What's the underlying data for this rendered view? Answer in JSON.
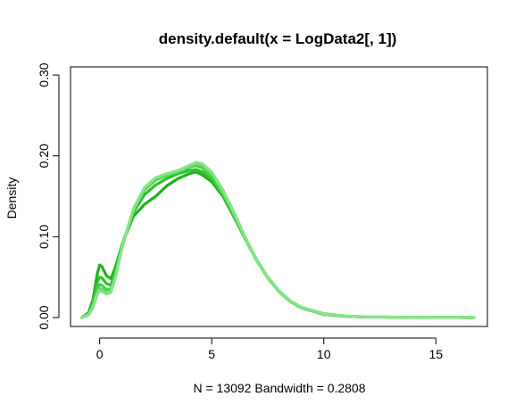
{
  "chart_data": {
    "type": "line",
    "title": "density.default(x = LogData2[, 1])",
    "xlabel": "N = 13092   Bandwidth = 0.2808",
    "ylabel": "Density",
    "xlim": [
      -1.3,
      17.3
    ],
    "ylim": [
      -0.011,
      0.31
    ],
    "x_ticks": [
      0,
      5,
      10,
      15
    ],
    "y_ticks": [
      0.0,
      0.1,
      0.2,
      0.3
    ],
    "x_tick_labels": [
      "0",
      "5",
      "10",
      "15"
    ],
    "y_tick_labels": [
      "0.00",
      "0.10",
      "0.20",
      "0.30"
    ],
    "grid": false,
    "legend": "none",
    "series": [
      {
        "color": "#1fb21f",
        "x": [
          -0.8,
          -0.5,
          -0.3,
          -0.1,
          0.0,
          0.1,
          0.3,
          0.5,
          0.7,
          1.0,
          1.5,
          2.0,
          2.5,
          3.0,
          3.5,
          4.0,
          4.3,
          4.6,
          5.0,
          5.5,
          6.0,
          6.5,
          7.0,
          7.5,
          8.0,
          8.5,
          9.0,
          10.0,
          11.0,
          12.0,
          13.0,
          14.0,
          15.0,
          16.0,
          16.7
        ],
        "y": [
          0.0,
          0.006,
          0.022,
          0.055,
          0.065,
          0.063,
          0.052,
          0.048,
          0.062,
          0.09,
          0.125,
          0.14,
          0.15,
          0.163,
          0.172,
          0.178,
          0.18,
          0.176,
          0.168,
          0.15,
          0.124,
          0.097,
          0.071,
          0.05,
          0.033,
          0.02,
          0.012,
          0.004,
          0.0015,
          0.0008,
          0.0005,
          0.0003,
          0.0002,
          0.0001,
          0.0
        ]
      },
      {
        "color": "#2dc12d",
        "x": [
          -0.8,
          -0.5,
          -0.3,
          -0.1,
          0.0,
          0.1,
          0.3,
          0.5,
          0.7,
          1.0,
          1.5,
          2.0,
          2.5,
          3.0,
          3.5,
          4.0,
          4.3,
          4.6,
          5.0,
          5.5,
          6.0,
          6.5,
          7.0,
          7.5,
          8.0,
          8.5,
          9.0,
          10.0,
          11.0,
          12.0,
          13.0,
          14.0,
          15.0,
          16.0,
          16.7
        ],
        "y": [
          0.0,
          0.005,
          0.018,
          0.044,
          0.05,
          0.049,
          0.042,
          0.04,
          0.057,
          0.09,
          0.13,
          0.152,
          0.164,
          0.172,
          0.178,
          0.182,
          0.183,
          0.18,
          0.171,
          0.152,
          0.126,
          0.098,
          0.072,
          0.05,
          0.033,
          0.02,
          0.012,
          0.004,
          0.0015,
          0.0008,
          0.0005,
          0.0003,
          0.0002,
          0.0001,
          0.0
        ]
      },
      {
        "color": "#45cf45",
        "x": [
          -0.8,
          -0.5,
          -0.3,
          -0.1,
          0.0,
          0.1,
          0.3,
          0.5,
          0.7,
          1.0,
          1.5,
          2.0,
          2.5,
          3.0,
          3.5,
          4.0,
          4.3,
          4.6,
          5.0,
          5.5,
          6.0,
          6.5,
          7.0,
          7.5,
          8.0,
          8.5,
          9.0,
          10.0,
          11.0,
          12.0,
          13.0,
          14.0,
          15.0,
          16.0,
          16.7
        ],
        "y": [
          0.0,
          0.004,
          0.015,
          0.036,
          0.041,
          0.04,
          0.035,
          0.035,
          0.052,
          0.088,
          0.132,
          0.158,
          0.17,
          0.176,
          0.18,
          0.186,
          0.188,
          0.185,
          0.174,
          0.153,
          0.126,
          0.097,
          0.071,
          0.049,
          0.032,
          0.02,
          0.012,
          0.004,
          0.0015,
          0.0008,
          0.0005,
          0.0003,
          0.0002,
          0.0001,
          0.0
        ]
      },
      {
        "color": "#62da62",
        "x": [
          -0.8,
          -0.5,
          -0.3,
          -0.1,
          0.0,
          0.1,
          0.3,
          0.5,
          0.7,
          1.0,
          1.5,
          2.0,
          2.5,
          3.0,
          3.5,
          4.0,
          4.3,
          4.6,
          5.0,
          5.5,
          6.0,
          6.5,
          7.0,
          7.5,
          8.0,
          8.5,
          9.0,
          10.0,
          11.0,
          12.0,
          13.0,
          14.0,
          15.0,
          16.0,
          16.7
        ],
        "y": [
          0.0,
          0.004,
          0.014,
          0.032,
          0.036,
          0.035,
          0.031,
          0.032,
          0.05,
          0.087,
          0.134,
          0.16,
          0.172,
          0.177,
          0.181,
          0.187,
          0.19,
          0.188,
          0.178,
          0.156,
          0.128,
          0.098,
          0.071,
          0.049,
          0.032,
          0.02,
          0.012,
          0.004,
          0.0015,
          0.0008,
          0.0005,
          0.0003,
          0.0002,
          0.0001,
          0.0
        ]
      },
      {
        "color": "#86e486",
        "x": [
          -0.8,
          -0.5,
          -0.3,
          -0.1,
          0.0,
          0.1,
          0.3,
          0.5,
          0.7,
          1.0,
          1.5,
          2.0,
          2.5,
          3.0,
          3.5,
          4.0,
          4.3,
          4.6,
          5.0,
          5.5,
          6.0,
          6.5,
          7.0,
          7.5,
          8.0,
          8.5,
          9.0,
          10.0,
          11.0,
          12.0,
          13.0,
          14.0,
          15.0,
          16.0,
          16.7
        ],
        "y": [
          0.0,
          0.003,
          0.012,
          0.029,
          0.033,
          0.032,
          0.029,
          0.031,
          0.049,
          0.086,
          0.134,
          0.161,
          0.173,
          0.178,
          0.182,
          0.188,
          0.192,
          0.19,
          0.18,
          0.158,
          0.13,
          0.099,
          0.072,
          0.05,
          0.033,
          0.021,
          0.013,
          0.005,
          0.002,
          0.001,
          0.0006,
          0.0004,
          0.0003,
          0.0002,
          0.0001
        ]
      }
    ]
  }
}
